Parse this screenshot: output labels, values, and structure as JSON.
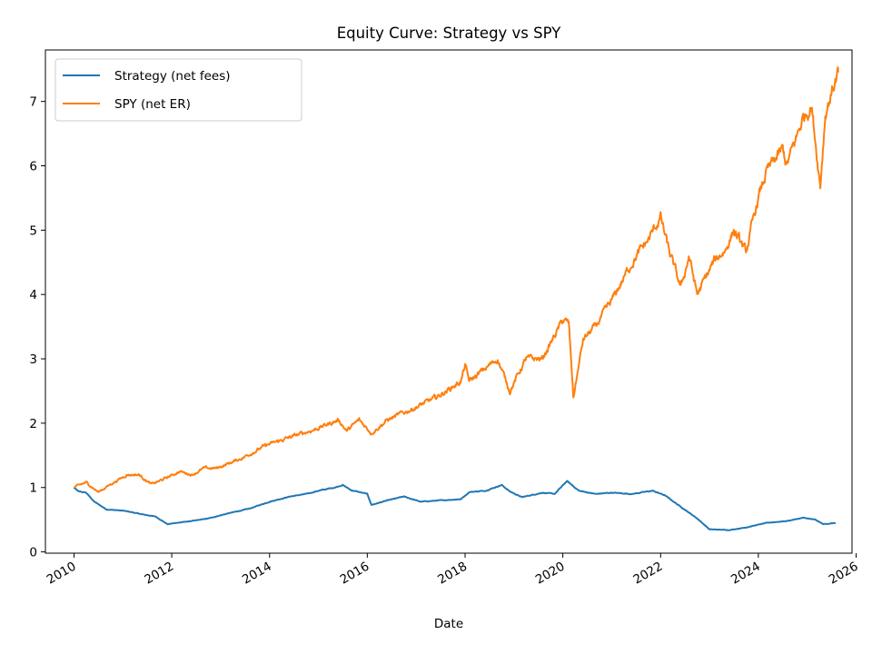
{
  "chart_data": {
    "type": "line",
    "title": "Equity Curve: Strategy vs SPY",
    "xlabel": "Date",
    "ylabel": "",
    "xlim": [
      "2009-06-01",
      "2025-12-01"
    ],
    "ylim": [
      -0.02,
      7.8
    ],
    "grid": false,
    "legend_position": "top-left",
    "x_ticks": [
      "2010",
      "2012",
      "2014",
      "2016",
      "2018",
      "2020",
      "2022",
      "2024",
      "2026"
    ],
    "y_ticks": [
      "0",
      "1",
      "2",
      "3",
      "4",
      "5",
      "6",
      "7"
    ],
    "series": [
      {
        "name": "Strategy (net fees)",
        "color": "#1f77b4",
        "points": [
          [
            "2010-01-01",
            1.0
          ],
          [
            "2010-02-01",
            0.94
          ],
          [
            "2010-04-01",
            0.92
          ],
          [
            "2010-06-01",
            0.78
          ],
          [
            "2010-09-01",
            0.66
          ],
          [
            "2011-01-01",
            0.64
          ],
          [
            "2011-03-01",
            0.62
          ],
          [
            "2011-06-01",
            0.58
          ],
          [
            "2011-09-01",
            0.55
          ],
          [
            "2011-12-01",
            0.43
          ],
          [
            "2012-02-01",
            0.45
          ],
          [
            "2012-06-01",
            0.48
          ],
          [
            "2012-10-01",
            0.52
          ],
          [
            "2013-03-01",
            0.6
          ],
          [
            "2013-08-01",
            0.67
          ],
          [
            "2014-01-01",
            0.78
          ],
          [
            "2014-06-01",
            0.86
          ],
          [
            "2014-10-01",
            0.9
          ],
          [
            "2015-01-01",
            0.95
          ],
          [
            "2015-05-01",
            1.0
          ],
          [
            "2015-07-01",
            1.04
          ],
          [
            "2015-09-01",
            0.96
          ],
          [
            "2016-01-01",
            0.9
          ],
          [
            "2016-02-01",
            0.73
          ],
          [
            "2016-06-01",
            0.8
          ],
          [
            "2016-10-01",
            0.86
          ],
          [
            "2017-02-01",
            0.78
          ],
          [
            "2017-07-01",
            0.8
          ],
          [
            "2017-12-01",
            0.82
          ],
          [
            "2018-02-01",
            0.93
          ],
          [
            "2018-06-01",
            0.95
          ],
          [
            "2018-10-01",
            1.04
          ],
          [
            "2018-12-01",
            0.94
          ],
          [
            "2019-03-01",
            0.85
          ],
          [
            "2019-08-01",
            0.92
          ],
          [
            "2019-11-01",
            0.9
          ],
          [
            "2020-02-01",
            1.1
          ],
          [
            "2020-05-01",
            0.95
          ],
          [
            "2020-09-01",
            0.9
          ],
          [
            "2021-01-01",
            0.92
          ],
          [
            "2021-06-01",
            0.9
          ],
          [
            "2021-11-01",
            0.95
          ],
          [
            "2022-02-01",
            0.88
          ],
          [
            "2022-06-01",
            0.7
          ],
          [
            "2022-10-01",
            0.52
          ],
          [
            "2023-01-01",
            0.35
          ],
          [
            "2023-06-01",
            0.34
          ],
          [
            "2023-10-01",
            0.38
          ],
          [
            "2024-03-01",
            0.45
          ],
          [
            "2024-08-01",
            0.48
          ],
          [
            "2024-12-01",
            0.53
          ],
          [
            "2025-03-01",
            0.5
          ],
          [
            "2025-05-01",
            0.43
          ],
          [
            "2025-08-01",
            0.45
          ]
        ]
      },
      {
        "name": "SPY (net ER)",
        "color": "#ff7f0e",
        "points": [
          [
            "2010-01-01",
            1.0
          ],
          [
            "2010-04-01",
            1.08
          ],
          [
            "2010-07-01",
            0.93
          ],
          [
            "2010-10-01",
            1.05
          ],
          [
            "2011-02-01",
            1.2
          ],
          [
            "2011-05-01",
            1.2
          ],
          [
            "2011-08-01",
            1.05
          ],
          [
            "2011-10-01",
            1.1
          ],
          [
            "2012-03-01",
            1.25
          ],
          [
            "2012-06-01",
            1.2
          ],
          [
            "2012-09-01",
            1.3
          ],
          [
            "2012-12-01",
            1.3
          ],
          [
            "2013-06-01",
            1.45
          ],
          [
            "2013-12-01",
            1.65
          ],
          [
            "2014-06-01",
            1.78
          ],
          [
            "2014-12-01",
            1.9
          ],
          [
            "2015-06-01",
            2.05
          ],
          [
            "2015-08-01",
            1.88
          ],
          [
            "2015-11-01",
            2.05
          ],
          [
            "2016-02-01",
            1.85
          ],
          [
            "2016-06-01",
            2.05
          ],
          [
            "2016-12-01",
            2.22
          ],
          [
            "2017-06-01",
            2.4
          ],
          [
            "2017-12-01",
            2.65
          ],
          [
            "2018-01-01",
            2.9
          ],
          [
            "2018-02-01",
            2.65
          ],
          [
            "2018-09-01",
            3.0
          ],
          [
            "2018-12-01",
            2.5
          ],
          [
            "2019-04-01",
            3.0
          ],
          [
            "2019-08-01",
            3.0
          ],
          [
            "2020-01-01",
            3.6
          ],
          [
            "2020-02-15",
            3.55
          ],
          [
            "2020-03-20",
            2.4
          ],
          [
            "2020-06-01",
            3.3
          ],
          [
            "2020-09-01",
            3.5
          ],
          [
            "2021-01-01",
            3.9
          ],
          [
            "2021-06-01",
            4.5
          ],
          [
            "2021-10-01",
            4.85
          ],
          [
            "2022-01-01",
            5.2
          ],
          [
            "2022-03-01",
            4.7
          ],
          [
            "2022-06-01",
            4.1
          ],
          [
            "2022-08-01",
            4.6
          ],
          [
            "2022-10-01",
            4.0
          ],
          [
            "2023-02-01",
            4.5
          ],
          [
            "2023-05-01",
            4.7
          ],
          [
            "2023-07-01",
            5.0
          ],
          [
            "2023-10-01",
            4.65
          ],
          [
            "2024-01-01",
            5.5
          ],
          [
            "2024-03-01",
            5.9
          ],
          [
            "2024-07-01",
            6.25
          ],
          [
            "2024-08-01",
            6.0
          ],
          [
            "2024-12-01",
            6.75
          ],
          [
            "2025-02-01",
            6.95
          ],
          [
            "2025-04-08",
            5.7
          ],
          [
            "2025-05-15",
            6.8
          ],
          [
            "2025-07-01",
            7.15
          ],
          [
            "2025-08-20",
            7.45
          ]
        ]
      }
    ]
  }
}
